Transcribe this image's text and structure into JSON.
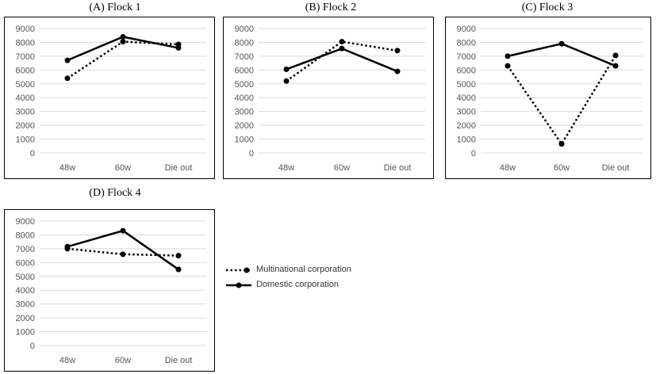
{
  "legend": {
    "multinational": "Multinational corporation",
    "domestic": "Domestic corporation"
  },
  "chart_data": [
    {
      "type": "line",
      "title": "(A)  Flock  1",
      "categories": [
        "48w",
        "60w",
        "Die out"
      ],
      "ylim": [
        0,
        9000
      ],
      "yticks": [
        0,
        1000,
        2000,
        3000,
        4000,
        5000,
        6000,
        7000,
        8000,
        9000
      ],
      "grid": true,
      "series": [
        {
          "name": "Multinational corporation",
          "style": "dotted",
          "values": [
            5400,
            8050,
            7850
          ]
        },
        {
          "name": "Domestic corporation",
          "style": "solid",
          "values": [
            6700,
            8400,
            7600
          ]
        }
      ]
    },
    {
      "type": "line",
      "title": "(B)  Flock  2",
      "categories": [
        "48w",
        "60w",
        "Die out"
      ],
      "ylim": [
        0,
        9000
      ],
      "yticks": [
        0,
        1000,
        2000,
        3000,
        4000,
        5000,
        6000,
        7000,
        8000,
        9000
      ],
      "grid": true,
      "series": [
        {
          "name": "Multinational corporation",
          "style": "dotted",
          "values": [
            5200,
            8050,
            7400
          ]
        },
        {
          "name": "Domestic corporation",
          "style": "solid",
          "values": [
            6050,
            7550,
            5900
          ]
        }
      ]
    },
    {
      "type": "line",
      "title": "(C)  Flock  3",
      "categories": [
        "48w",
        "60w",
        "Die out"
      ],
      "ylim": [
        0,
        9000
      ],
      "yticks": [
        0,
        1000,
        2000,
        3000,
        4000,
        5000,
        6000,
        7000,
        8000,
        9000
      ],
      "grid": true,
      "series": [
        {
          "name": "Multinational corporation",
          "style": "dotted",
          "values": [
            6300,
            650,
            7050
          ]
        },
        {
          "name": "Domestic corporation",
          "style": "solid",
          "values": [
            7000,
            7900,
            6300
          ]
        }
      ]
    },
    {
      "type": "line",
      "title": "(D)  Flock  4",
      "categories": [
        "48w",
        "60w",
        "Die out"
      ],
      "ylim": [
        0,
        9000
      ],
      "yticks": [
        0,
        1000,
        2000,
        3000,
        4000,
        5000,
        6000,
        7000,
        8000,
        9000
      ],
      "grid": true,
      "series": [
        {
          "name": "Multinational corporation",
          "style": "dotted",
          "values": [
            7000,
            6600,
            6500
          ]
        },
        {
          "name": "Domestic corporation",
          "style": "solid",
          "values": [
            7150,
            8300,
            5500
          ]
        }
      ]
    }
  ]
}
